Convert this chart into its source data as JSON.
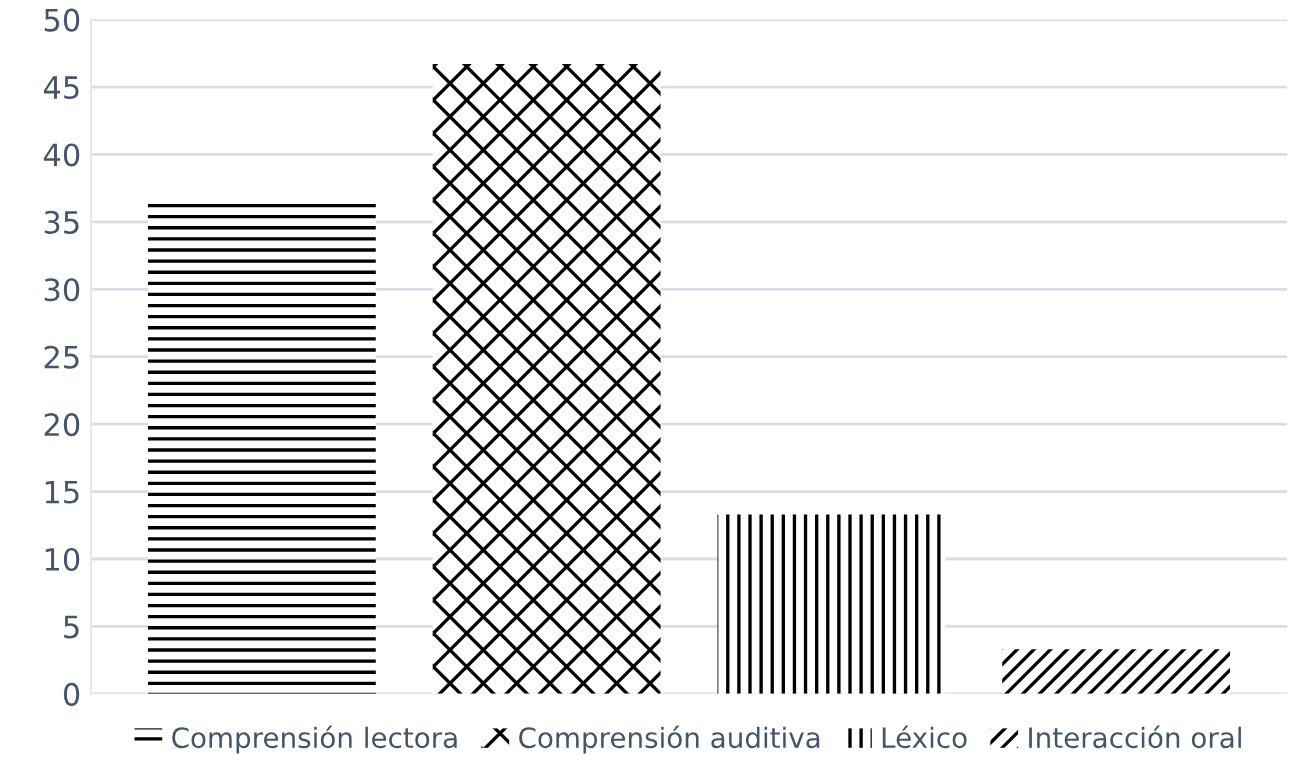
{
  "chart_data": {
    "type": "bar",
    "categories": [
      null,
      null,
      null,
      null
    ],
    "series": [
      {
        "name": "Comprensión lectora",
        "color": "#000000",
        "values": [
          36.4,
          null,
          null,
          null
        ]
      },
      {
        "name": "Comprensión auditiva",
        "color": "#000000",
        "values": [
          null,
          46.7,
          null,
          null
        ]
      },
      {
        "name": "Léxico",
        "color": "#000000",
        "values": [
          null,
          null,
          13.3,
          null
        ]
      },
      {
        "name": "Interacción oral",
        "color": "#000000",
        "values": [
          null,
          null,
          null,
          3.3
        ]
      }
    ],
    "ylim": [
      0,
      50
    ],
    "yticks": [
      0,
      5,
      10,
      15,
      20,
      25,
      30,
      35,
      40,
      45,
      50
    ],
    "grid": "y",
    "legend": "bottom"
  }
}
